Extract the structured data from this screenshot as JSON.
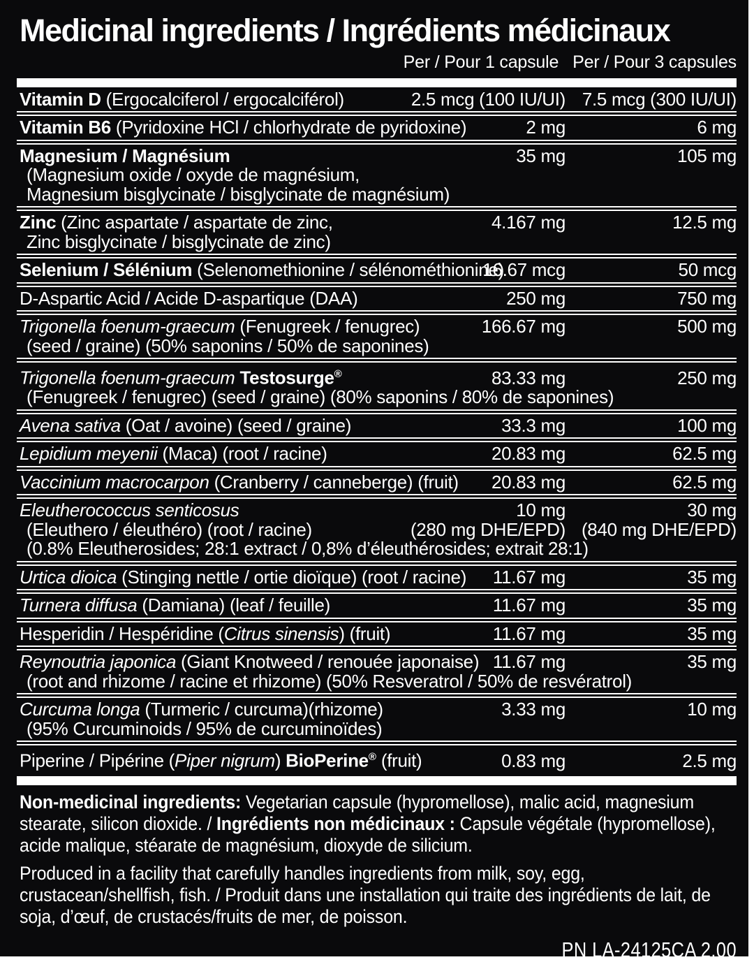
{
  "colors": {
    "label_background": "#0a0a0c",
    "text": "#ffffff",
    "rule": "#ffffff"
  },
  "header": {
    "title": "Medicinal ingredients / Ingrédients médicinaux",
    "per_1_capsule": "Per / Pour 1 capsule",
    "per_3_capsules": "Per / Pour 3 capsules"
  },
  "table": {
    "rows": [
      {
        "name": [
          {
            "t": "Vitamin D",
            "b": true
          },
          {
            "t": " (Ergocalciferol / ergocalciférol)"
          }
        ],
        "v1": "2.5 mcg (100 IU/UI)",
        "v3": "7.5 mcg (300 IU/UI)"
      },
      {
        "name": [
          {
            "t": "Vitamin B6",
            "b": true
          },
          {
            "t": " (Pyridoxine HCl / chlorhydrate de pyridoxine)"
          }
        ],
        "v1": "2 mg",
        "v3": "6 mg"
      },
      {
        "name": [
          {
            "t": "Magnesium / Magnésium",
            "b": true
          }
        ],
        "sub": [
          {
            "t": "(Magnesium oxide / oxyde de magnésium,"
          },
          {
            "t": "Magnesium bisglycinate / bisglycinate de magnésium)"
          }
        ],
        "v1": "35 mg",
        "v3": "105 mg"
      },
      {
        "name": [
          {
            "t": "Zinc",
            "b": true
          },
          {
            "t": " (Zinc aspartate / aspartate de zinc,"
          }
        ],
        "sub": [
          {
            "t": "Zinc bisglycinate / bisglycinate de zinc)"
          }
        ],
        "v1": "4.167 mg",
        "v3": "12.5 mg"
      },
      {
        "name": [
          {
            "t": "Selenium / Sélénium",
            "b": true
          },
          {
            "t": " (Selenomethionine / sélénométhionine)"
          }
        ],
        "v1": "16.67 mcg",
        "v3": "50 mcg"
      },
      {
        "name": [
          {
            "t": "D-Aspartic Acid / Acide D-aspartique (DAA)"
          }
        ],
        "v1": "250 mg",
        "v3": "750 mg"
      },
      {
        "name": [
          {
            "t": "Trigonella foenum-graecum",
            "i": true
          },
          {
            "t": " (Fenugreek / fenugrec)"
          }
        ],
        "sub": [
          {
            "t": "(seed / graine) (50% saponins / 50% de saponines)"
          }
        ],
        "v1": "166.67 mg",
        "v3": "500 mg"
      },
      {
        "name": [
          {
            "t": "Trigonella foenum-graecum",
            "i": true
          },
          {
            "t": " "
          },
          {
            "t": "Testosurge",
            "b": true
          },
          {
            "t": "®",
            "b": true,
            "s": true
          }
        ],
        "sub": [
          {
            "t": "(Fenugreek / fenugrec) (seed / graine) (80% saponins / 80% de saponines)"
          }
        ],
        "v1": "83.33 mg",
        "v3": "250 mg"
      },
      {
        "name": [
          {
            "t": "Avena sativa",
            "i": true
          },
          {
            "t": " (Oat / avoine) (seed / graine)"
          }
        ],
        "v1": "33.3 mg",
        "v3": "100 mg"
      },
      {
        "name": [
          {
            "t": "Lepidium meyenii",
            "i": true
          },
          {
            "t": " (Maca) (root / racine)"
          }
        ],
        "v1": "20.83 mg",
        "v3": "62.5 mg"
      },
      {
        "name": [
          {
            "t": "Vaccinium macrocarpon",
            "i": true
          },
          {
            "t": " (Cranberry / canneberge) (fruit)"
          }
        ],
        "v1": "20.83 mg",
        "v3": "62.5 mg"
      },
      {
        "name": [
          {
            "t": "Eleutherococcus senticosus",
            "i": true
          }
        ],
        "sub": [
          {
            "t": "(Eleuthero / éleuthéro) (root / racine)",
            "v1": "(280 mg DHE/EPD)",
            "v3": "(840 mg DHE/EPD)"
          },
          {
            "t": "(0.8% Eleutherosides; 28:1 extract / 0,8% d’éleuthérosides; extrait 28:1)"
          }
        ],
        "v1": "10 mg",
        "v3": "30 mg"
      },
      {
        "name": [
          {
            "t": "Urtica dioica",
            "i": true
          },
          {
            "t": " (Stinging nettle / ortie dioïque) (root / racine)"
          }
        ],
        "v1": "11.67 mg",
        "v3": "35 mg"
      },
      {
        "name": [
          {
            "t": "Turnera diffusa",
            "i": true
          },
          {
            "t": " (Damiana) (leaf / feuille)"
          }
        ],
        "v1": "11.67 mg",
        "v3": "35 mg"
      },
      {
        "name": [
          {
            "t": "Hesperidin / Hespéridine ("
          },
          {
            "t": "Citrus sinensis",
            "i": true
          },
          {
            "t": ") (fruit)"
          }
        ],
        "v1": "11.67 mg",
        "v3": "35 mg"
      },
      {
        "name": [
          {
            "t": "Reynoutria japonica",
            "i": true
          },
          {
            "t": " (Giant Knotweed / renouée japonaise)"
          }
        ],
        "sub": [
          {
            "t": "(root and rhizome / racine et rhizome) (50% Resveratrol / 50% de resvératrol)"
          }
        ],
        "v1": "11.67 mg",
        "v3": "35 mg"
      },
      {
        "name": [
          {
            "t": "Curcuma longa",
            "i": true
          },
          {
            "t": " (Turmeric / curcuma)(rhizome)"
          }
        ],
        "sub": [
          {
            "t": "(95% Curcuminoids / 95% de curcuminoïdes)"
          }
        ],
        "v1": "3.33 mg",
        "v3": "10 mg"
      },
      {
        "name": [
          {
            "t": "Piperine / Pipérine ("
          },
          {
            "t": "Piper nigrum",
            "i": true
          },
          {
            "t": ") "
          },
          {
            "t": "BioPerine",
            "b": true
          },
          {
            "t": "®",
            "b": true,
            "s": true
          },
          {
            "t": " (fruit)"
          }
        ],
        "v1": "0.83 mg",
        "v3": "2.5 mg"
      }
    ]
  },
  "footnotes": {
    "paragraphs": [
      [
        {
          "t": "Non-medicinal ingredients:",
          "b": true
        },
        {
          "t": " Vegetarian capsule (hypromellose), malic acid, magnesium stearate, silicon dioxide. / "
        },
        {
          "t": "Ingrédients non médicinaux :",
          "b": true
        },
        {
          "t": " Capsule végétale (hypromellose), acide malique, stéarate de magnésium, dioxyde de silicium."
        }
      ],
      [
        {
          "t": "Produced in a facility that carefully handles ingredients from milk, soy, egg, crustacean/shellfish, fish. / Produit dans une installation qui traite des ingrédients de lait, de soja, d’œuf, de crustacés/fruits de mer, de poisson."
        }
      ]
    ],
    "part_number": "PN LA-24125CA 2.00"
  }
}
